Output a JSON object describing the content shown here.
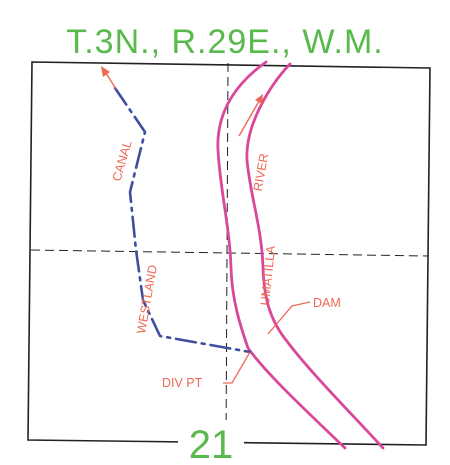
{
  "map": {
    "title": "T.3N., R.29E., W.M.",
    "section_number": "21",
    "labels": {
      "canal": "CANAL",
      "westland": "WESTLAND",
      "river": "RIVER",
      "umatilla": "UMATILLA",
      "dam": "DAM",
      "div_pt": "DIV PT"
    },
    "colors": {
      "title": "#5ab94c",
      "river": "#d9489a",
      "canal": "#3d4f9e",
      "annotation": "#ee6a55",
      "lines": "#222222"
    }
  }
}
